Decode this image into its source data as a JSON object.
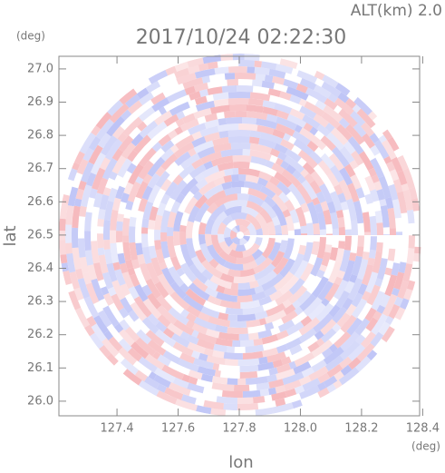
{
  "chart_data": {
    "type": "radar-ppi",
    "title": "2017/10/24 02:22:30",
    "subtitle": "ALT(km) 2.0",
    "x_label": "lon",
    "y_label": "lat",
    "x_unit": "(deg)",
    "y_unit": "(deg)",
    "xlim": [
      127.21,
      128.39
    ],
    "ylim": [
      25.956,
      27.038
    ],
    "xticks": [
      127.4,
      127.6,
      127.8,
      {
        "value": 128,
        "label": "128.0"
      },
      128.2,
      128.4
    ],
    "yticks": [
      {
        "value": 26,
        "label": "26.0"
      },
      26.1,
      26.2,
      26.3,
      26.4,
      26.5,
      26.6,
      26.7,
      26.8,
      26.9,
      {
        "value": 27,
        "label": "27.0"
      }
    ],
    "colors": [
      "#f6b8bc",
      "#bcc2f6"
    ]
  }
}
